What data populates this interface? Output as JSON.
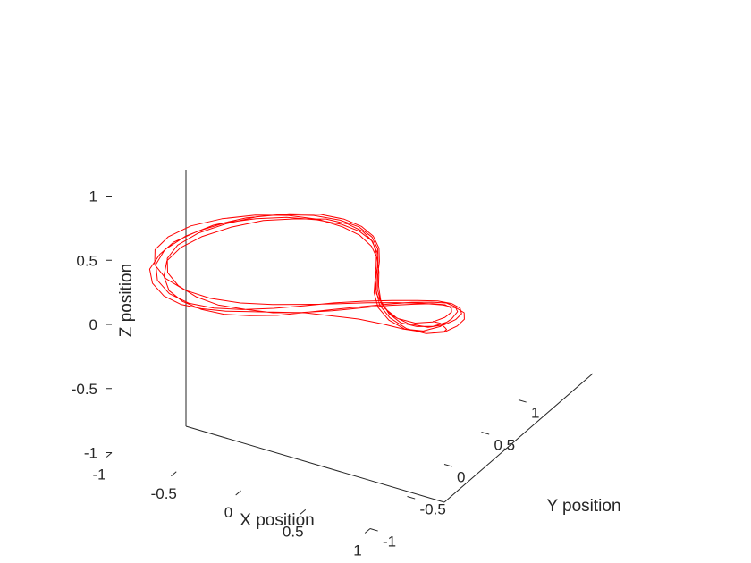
{
  "chart_data": {
    "type": "line",
    "projection": "3d",
    "title": "",
    "xlabel": "X position",
    "ylabel": "Y position",
    "zlabel": "Z position",
    "xlim": [
      -1,
      1
    ],
    "ylim": [
      -1,
      1
    ],
    "zlim": [
      -1,
      1
    ],
    "x_ticks": [
      -1,
      -0.5,
      0,
      0.5,
      1
    ],
    "y_ticks": [
      -1,
      -0.5,
      0,
      0.5,
      1
    ],
    "z_ticks": [
      -1,
      -0.5,
      0,
      0.5,
      1
    ],
    "x_tick_labels": [
      "-1",
      "-0.5",
      "0",
      "0.5",
      "1"
    ],
    "y_tick_labels": [
      "-1",
      "-0.5",
      "0",
      "0.5",
      "1"
    ],
    "z_tick_labels": [
      "-1",
      "-0.5",
      "0",
      "0.5",
      "1"
    ],
    "grid": false,
    "legend": "none",
    "series": [
      {
        "color": "#ff0000",
        "points": [
          [
            0.45,
            0.8,
            -0.45
          ],
          [
            0.55,
            0.73,
            -0.4
          ],
          [
            0.65,
            0.62,
            -0.35
          ],
          [
            0.73,
            0.5,
            -0.28
          ],
          [
            0.78,
            0.38,
            -0.22
          ],
          [
            0.78,
            0.25,
            -0.16
          ],
          [
            0.75,
            0.12,
            -0.1
          ],
          [
            0.68,
            0,
            -0.04
          ],
          [
            0.58,
            -0.1,
            0.02
          ],
          [
            0.45,
            -0.2,
            0.07
          ],
          [
            0.3,
            -0.3,
            0.1
          ],
          [
            0.15,
            -0.4,
            0.13
          ],
          [
            0,
            -0.5,
            0.14
          ],
          [
            -0.15,
            -0.6,
            0.15
          ],
          [
            -0.3,
            -0.68,
            0.15
          ],
          [
            -0.45,
            -0.75,
            0.16
          ],
          [
            -0.58,
            -0.8,
            0.18
          ],
          [
            -0.7,
            -0.82,
            0.22
          ],
          [
            -0.8,
            -0.8,
            0.28
          ],
          [
            -0.85,
            -0.75,
            0.35
          ],
          [
            -0.83,
            -0.65,
            0.42
          ],
          [
            -0.78,
            -0.55,
            0.48
          ],
          [
            -0.68,
            -0.4,
            0.52
          ],
          [
            -0.55,
            -0.25,
            0.55
          ],
          [
            -0.4,
            -0.1,
            0.55
          ],
          [
            -0.25,
            0.05,
            0.53
          ],
          [
            -0.1,
            0.2,
            0.48
          ],
          [
            0.02,
            0.32,
            0.42
          ],
          [
            0.1,
            0.42,
            0.34
          ],
          [
            0.15,
            0.5,
            0.24
          ],
          [
            0.17,
            0.55,
            0.12
          ],
          [
            0.15,
            0.58,
            0
          ],
          [
            0.12,
            0.6,
            -0.12
          ],
          [
            0.1,
            0.62,
            -0.24
          ],
          [
            0.12,
            0.64,
            -0.36
          ],
          [
            0.18,
            0.68,
            -0.46
          ],
          [
            0.28,
            0.72,
            -0.52
          ],
          [
            0.4,
            0.76,
            -0.52
          ],
          [
            0.52,
            0.78,
            -0.46
          ],
          [
            0.62,
            0.76,
            -0.36
          ],
          [
            0.7,
            0.7,
            -0.25
          ],
          [
            0.74,
            0.6,
            -0.15
          ],
          [
            0.74,
            0.48,
            -0.06
          ],
          [
            0.7,
            0.35,
            0
          ],
          [
            0.62,
            0.22,
            0.04
          ],
          [
            0.5,
            0.1,
            0.05
          ],
          [
            0.36,
            0,
            0.04
          ],
          [
            0.2,
            -0.1,
            0.02
          ],
          [
            0.04,
            -0.2,
            0
          ],
          [
            -0.12,
            -0.3,
            -0.02
          ],
          [
            -0.28,
            -0.4,
            -0.02
          ],
          [
            -0.42,
            -0.5,
            0
          ],
          [
            -0.55,
            -0.58,
            0.04
          ],
          [
            -0.66,
            -0.64,
            0.1
          ],
          [
            -0.74,
            -0.68,
            0.18
          ],
          [
            -0.78,
            -0.68,
            0.28
          ],
          [
            -0.78,
            -0.64,
            0.38
          ],
          [
            -0.72,
            -0.56,
            0.46
          ],
          [
            -0.62,
            -0.45,
            0.52
          ],
          [
            -0.48,
            -0.3,
            0.56
          ],
          [
            -0.32,
            -0.14,
            0.58
          ],
          [
            -0.16,
            0.02,
            0.56
          ],
          [
            -0.02,
            0.18,
            0.52
          ],
          [
            0.08,
            0.3,
            0.45
          ],
          [
            0.14,
            0.4,
            0.36
          ],
          [
            0.17,
            0.48,
            0.25
          ],
          [
            0.17,
            0.53,
            0.13
          ],
          [
            0.15,
            0.56,
            0.01
          ],
          [
            0.13,
            0.58,
            -0.11
          ],
          [
            0.13,
            0.6,
            -0.23
          ],
          [
            0.17,
            0.63,
            -0.34
          ],
          [
            0.25,
            0.67,
            -0.42
          ],
          [
            0.36,
            0.72,
            -0.45
          ],
          [
            0.48,
            0.75,
            -0.42
          ],
          [
            0.58,
            0.74,
            -0.35
          ],
          [
            0.66,
            0.69,
            -0.26
          ],
          [
            0.71,
            0.6,
            -0.17
          ],
          [
            0.72,
            0.5,
            -0.09
          ],
          [
            0.69,
            0.38,
            -0.03
          ],
          [
            0.62,
            0.25,
            0.01
          ],
          [
            0.5,
            0.12,
            0.03
          ],
          [
            0.36,
            0,
            0.03
          ],
          [
            0.2,
            -0.12,
            0.02
          ],
          [
            0.04,
            -0.24,
            0.02
          ],
          [
            -0.12,
            -0.36,
            0.03
          ],
          [
            -0.28,
            -0.46,
            0.06
          ],
          [
            -0.43,
            -0.56,
            0.1
          ],
          [
            -0.56,
            -0.63,
            0.16
          ],
          [
            -0.67,
            -0.68,
            0.24
          ],
          [
            -0.74,
            -0.7,
            0.33
          ],
          [
            -0.76,
            -0.67,
            0.42
          ],
          [
            -0.72,
            -0.6,
            0.5
          ],
          [
            -0.63,
            -0.48,
            0.56
          ],
          [
            -0.5,
            -0.34,
            0.6
          ],
          [
            -0.35,
            -0.18,
            0.62
          ],
          [
            -0.19,
            -0.02,
            0.61
          ],
          [
            -0.04,
            0.14,
            0.57
          ],
          [
            0.07,
            0.27,
            0.5
          ],
          [
            0.14,
            0.38,
            0.41
          ],
          [
            0.18,
            0.47,
            0.3
          ],
          [
            0.19,
            0.53,
            0.18
          ],
          [
            0.17,
            0.57,
            0.05
          ],
          [
            0.14,
            0.6,
            -0.08
          ],
          [
            0.12,
            0.63,
            -0.21
          ],
          [
            0.13,
            0.66,
            -0.33
          ],
          [
            0.19,
            0.7,
            -0.43
          ],
          [
            0.29,
            0.75,
            -0.49
          ],
          [
            0.42,
            0.79,
            -0.5
          ],
          [
            0.54,
            0.8,
            -0.45
          ],
          [
            0.64,
            0.78,
            -0.37
          ],
          [
            0.72,
            0.72,
            -0.27
          ],
          [
            0.76,
            0.63,
            -0.17
          ],
          [
            0.76,
            0.52,
            -0.08
          ],
          [
            0.72,
            0.4,
            -0.01
          ],
          [
            0.64,
            0.26,
            0.04
          ],
          [
            0.52,
            0.13,
            0.07
          ],
          [
            0.37,
            0.01,
            0.08
          ],
          [
            0.21,
            -0.11,
            0.08
          ],
          [
            0.05,
            -0.23,
            0.07
          ],
          [
            -0.12,
            -0.35,
            0.06
          ],
          [
            -0.29,
            -0.47,
            0.06
          ],
          [
            -0.45,
            -0.58,
            0.08
          ],
          [
            -0.59,
            -0.67,
            0.12
          ],
          [
            -0.71,
            -0.73,
            0.19
          ],
          [
            -0.79,
            -0.75,
            0.28
          ],
          [
            -0.82,
            -0.72,
            0.38
          ],
          [
            -0.79,
            -0.65,
            0.47
          ],
          [
            -0.7,
            -0.53,
            0.54
          ],
          [
            -0.57,
            -0.38,
            0.59
          ],
          [
            -0.41,
            -0.21,
            0.61
          ],
          [
            -0.24,
            -0.04,
            0.6
          ],
          [
            -0.08,
            0.12,
            0.56
          ],
          [
            0.04,
            0.26,
            0.49
          ],
          [
            0.12,
            0.38,
            0.4
          ],
          [
            0.17,
            0.47,
            0.29
          ],
          [
            0.18,
            0.53,
            0.17
          ],
          [
            0.16,
            0.57,
            0.04
          ],
          [
            0.13,
            0.6,
            -0.09
          ],
          [
            0.11,
            0.63,
            -0.22
          ],
          [
            0.12,
            0.66,
            -0.35
          ],
          [
            0.17,
            0.71,
            -0.46
          ],
          [
            0.27,
            0.76,
            -0.54
          ],
          [
            0.4,
            0.8,
            -0.56
          ],
          [
            0.53,
            0.82,
            -0.52
          ],
          [
            0.64,
            0.8,
            -0.43
          ],
          [
            0.73,
            0.74,
            -0.32
          ],
          [
            0.78,
            0.65,
            -0.21
          ],
          [
            0.79,
            0.53,
            -0.11
          ],
          [
            0.76,
            0.4,
            -0.03
          ],
          [
            0.68,
            0.26,
            0.03
          ],
          [
            0.56,
            0.12,
            0.07
          ],
          [
            0.41,
            -0.01,
            0.09
          ],
          [
            0.25,
            -0.14,
            0.1
          ],
          [
            0.08,
            -0.27,
            0.11
          ],
          [
            -0.1,
            -0.4,
            0.12
          ],
          [
            -0.28,
            -0.52,
            0.14
          ],
          [
            -0.45,
            -0.63,
            0.18
          ],
          [
            -0.6,
            -0.71,
            0.24
          ],
          [
            -0.72,
            -0.76,
            0.32
          ],
          [
            -0.8,
            -0.77,
            0.41
          ],
          [
            -0.82,
            -0.73,
            0.5
          ],
          [
            -0.77,
            -0.64,
            0.57
          ],
          [
            -0.67,
            -0.51,
            0.62
          ],
          [
            -0.52,
            -0.35,
            0.64
          ],
          [
            -0.36,
            -0.18,
            0.63
          ],
          [
            -0.2,
            -0.01,
            0.59
          ],
          [
            -0.06,
            0.15,
            0.52
          ],
          [
            0.05,
            0.28,
            0.43
          ],
          [
            0.12,
            0.39,
            0.33
          ],
          [
            0.16,
            0.48,
            0.21
          ],
          [
            0.17,
            0.54,
            0.09
          ],
          [
            0.16,
            0.58,
            -0.04
          ],
          [
            0.14,
            0.61,
            -0.17
          ],
          [
            0.14,
            0.64,
            -0.3
          ],
          [
            0.18,
            0.68,
            -0.41
          ],
          [
            0.25,
            0.72,
            -0.48
          ],
          [
            0.35,
            0.76,
            -0.5
          ],
          [
            0.46,
            0.79,
            -0.48
          ],
          [
            0.56,
            0.79,
            -0.42
          ]
        ]
      }
    ]
  }
}
